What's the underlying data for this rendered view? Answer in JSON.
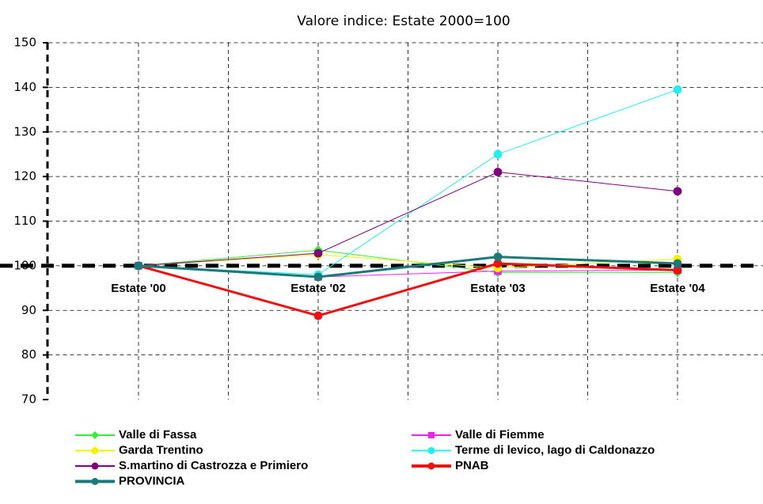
{
  "chart_data": {
    "type": "line",
    "title": "Valore indice: Estate 2000=100",
    "categories": [
      "Estate '00",
      "Estate '02",
      "Estate '03",
      "Estate '04"
    ],
    "ylim": [
      70,
      150
    ],
    "yticks": [
      70,
      80,
      90,
      100,
      110,
      120,
      130,
      140,
      150
    ],
    "grid": true,
    "x_axis_at": 100,
    "series": [
      {
        "name": "Valle di Fassa",
        "color": "#33ee33",
        "marker": "diamond",
        "line_width": 1,
        "values": [
          100,
          103.5,
          98.5,
          98.5
        ]
      },
      {
        "name": "Valle di Fiemme",
        "color": "#ee22ee",
        "marker": "square",
        "line_width": 1,
        "values": [
          100,
          97.5,
          98.8,
          99
        ]
      },
      {
        "name": "Garda Trentino",
        "color": "#f2f200",
        "marker": "circle",
        "line_width": 1,
        "values": [
          100,
          102.5,
          99.5,
          101.5
        ]
      },
      {
        "name": "Terme di levico, lago di Caldonazzo",
        "color": "#22eeee",
        "marker": "circle",
        "line_width": 1,
        "values": [
          100,
          98,
          125,
          139.5
        ]
      },
      {
        "name": "S.martino di Castrozza e Primiero",
        "color": "#800080",
        "marker": "circle",
        "line_width": 1,
        "values": [
          100,
          102.8,
          121,
          116.7
        ]
      },
      {
        "name": "PNAB",
        "color": "#ee1111",
        "marker": "circle",
        "line_width": 3,
        "values": [
          100,
          88.8,
          100.5,
          99
        ]
      },
      {
        "name": "PROVINCIA",
        "color": "#1a7a7a",
        "marker": "circle",
        "line_width": 3,
        "values": [
          100,
          97.5,
          102,
          100.5
        ]
      }
    ]
  }
}
